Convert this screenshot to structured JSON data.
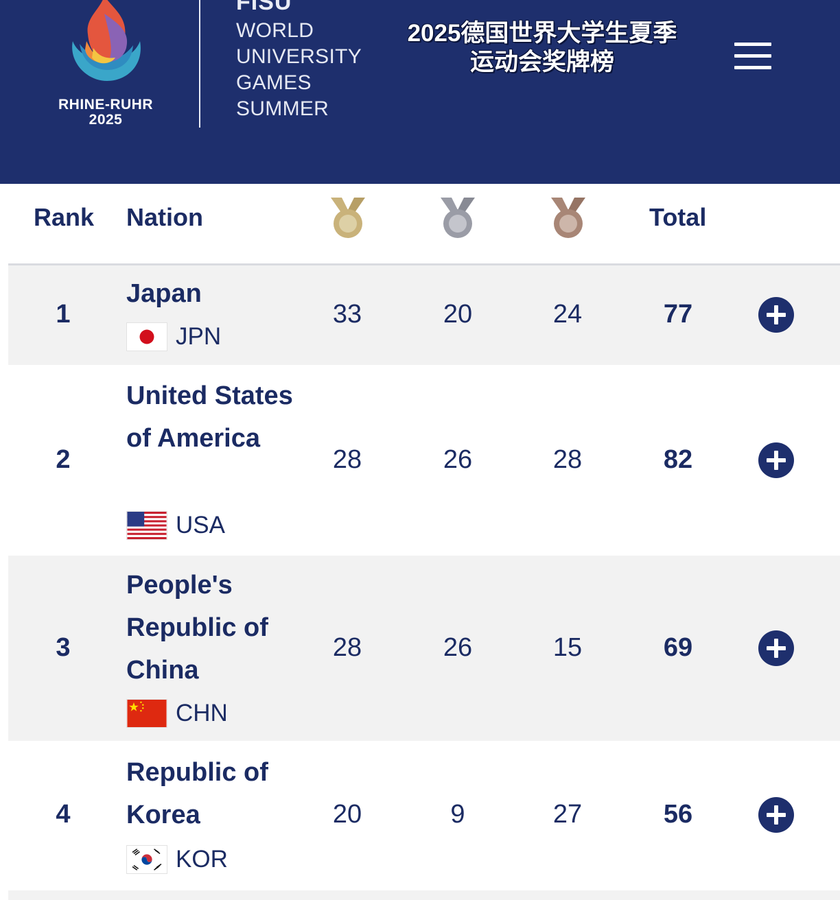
{
  "header": {
    "logo_line1": "RHINE-RUHR",
    "logo_line2": "2025",
    "fisu": "FISU",
    "games_lines": [
      "WORLD",
      "UNIVERSITY",
      "GAMES",
      "SUMMER"
    ],
    "cn_title_line1": "2025德国世界大学生夏季",
    "cn_title_line2": "运动会奖牌榜"
  },
  "table": {
    "col_rank": "Rank",
    "col_nation": "Nation",
    "col_total": "Total",
    "medal_icons": [
      "gold-medal-icon",
      "silver-medal-icon",
      "bronze-medal-icon"
    ],
    "rows": [
      {
        "rank": "1",
        "name": "Japan",
        "code": "JPN",
        "gold": "33",
        "silver": "20",
        "bronze": "24",
        "total": "77",
        "flag": "japan-flag-icon"
      },
      {
        "rank": "2",
        "name": "United States of America",
        "code": "USA",
        "gold": "28",
        "silver": "26",
        "bronze": "28",
        "total": "82",
        "flag": "usa-flag-icon"
      },
      {
        "rank": "3",
        "name": "People's Republic of China",
        "code": "CHN",
        "gold": "28",
        "silver": "26",
        "bronze": "15",
        "total": "69",
        "flag": "china-flag-icon"
      },
      {
        "rank": "4",
        "name": "Republic of Korea",
        "code": "KOR",
        "gold": "20",
        "silver": "9",
        "bronze": "27",
        "total": "56",
        "flag": "korea-flag-icon"
      }
    ]
  },
  "colors": {
    "header_bg": "#1e2f6d",
    "text_navy": "#1b2b63",
    "row_alt_bg": "#f2f2f2",
    "gold": "#c9b27a",
    "silver": "#9a9ca6",
    "bronze": "#a88676"
  }
}
